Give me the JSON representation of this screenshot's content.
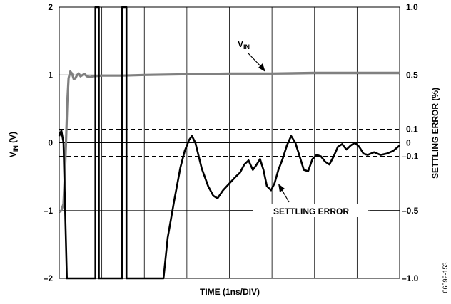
{
  "chart_data": {
    "type": "line",
    "xlabel": "TIME (1ns/DIV)",
    "ylabel_left": {
      "main": "V",
      "sub": "IN",
      "unit": " (V)"
    },
    "ylabel_right": "SETTLING ERROR (%)",
    "x_divisions": 8,
    "ylim_left": [
      -2,
      2
    ],
    "ylim_right": [
      -1.0,
      1.0
    ],
    "left_ticks": [
      "2",
      "1",
      "0",
      "–1",
      "–2"
    ],
    "left_tick_values": [
      2,
      1,
      0,
      -1,
      -2
    ],
    "right_ticks": [
      "1.0",
      "0.5",
      "0.1",
      "0",
      "–0.1",
      "–0.5",
      "–1.0"
    ],
    "right_tick_values": [
      1.0,
      0.5,
      0.1,
      0,
      -0.1,
      -0.5,
      -1.0
    ],
    "threshold_lines_pct": [
      0.1,
      -0.1
    ],
    "grid": true,
    "series": [
      {
        "name": "VIN",
        "axis": "left",
        "color": "#808080",
        "points": [
          [
            0,
            -1.02
          ],
          [
            0.05,
            -1.0
          ],
          [
            0.1,
            -0.9
          ],
          [
            0.13,
            -0.5
          ],
          [
            0.16,
            0.0
          ],
          [
            0.19,
            0.6
          ],
          [
            0.22,
            0.95
          ],
          [
            0.26,
            1.05
          ],
          [
            0.3,
            1.02
          ],
          [
            0.34,
            0.94
          ],
          [
            0.38,
            0.95
          ],
          [
            0.42,
            1.0
          ],
          [
            0.46,
            1.02
          ],
          [
            0.5,
            0.98
          ],
          [
            0.55,
            1.0
          ],
          [
            0.6,
            1.01
          ],
          [
            0.65,
            0.98
          ],
          [
            0.72,
            0.97
          ],
          [
            0.8,
            0.98
          ],
          [
            1.0,
            0.99
          ],
          [
            1.5,
            0.99
          ],
          [
            2.0,
            1.0
          ],
          [
            3.0,
            1.01
          ],
          [
            4.0,
            1.02
          ],
          [
            5.0,
            1.02
          ],
          [
            6.0,
            1.03
          ],
          [
            7.0,
            1.03
          ],
          [
            8.0,
            1.03
          ]
        ]
      },
      {
        "name": "SETTLING ERROR",
        "axis": "right",
        "color": "#000000",
        "points": [
          [
            0,
            0.05
          ],
          [
            0.05,
            0.09
          ],
          [
            0.1,
            0.0
          ],
          [
            0.14,
            -0.5
          ],
          [
            0.18,
            -1.0
          ],
          [
            0.85,
            -1.0
          ],
          [
            0.85,
            1.0
          ],
          [
            0.93,
            1.0
          ],
          [
            0.93,
            -1.0
          ],
          [
            1.48,
            -1.0
          ],
          [
            1.48,
            1.0
          ],
          [
            1.58,
            1.0
          ],
          [
            1.58,
            -1.0
          ],
          [
            2.45,
            -1.0
          ],
          [
            2.55,
            -0.7
          ],
          [
            2.7,
            -0.43
          ],
          [
            2.85,
            -0.18
          ],
          [
            2.95,
            -0.06
          ],
          [
            3.05,
            0.02
          ],
          [
            3.12,
            0.05
          ],
          [
            3.2,
            0.0
          ],
          [
            3.35,
            -0.19
          ],
          [
            3.5,
            -0.32
          ],
          [
            3.62,
            -0.39
          ],
          [
            3.72,
            -0.41
          ],
          [
            3.85,
            -0.35
          ],
          [
            4.0,
            -0.3
          ],
          [
            4.15,
            -0.25
          ],
          [
            4.25,
            -0.22
          ],
          [
            4.35,
            -0.16
          ],
          [
            4.45,
            -0.13
          ],
          [
            4.55,
            -0.2
          ],
          [
            4.62,
            -0.17
          ],
          [
            4.72,
            -0.12
          ],
          [
            4.8,
            -0.2
          ],
          [
            4.88,
            -0.32
          ],
          [
            4.98,
            -0.35
          ],
          [
            5.06,
            -0.3
          ],
          [
            5.15,
            -0.2
          ],
          [
            5.25,
            -0.12
          ],
          [
            5.35,
            -0.02
          ],
          [
            5.45,
            0.05
          ],
          [
            5.55,
            0.0
          ],
          [
            5.65,
            -0.1
          ],
          [
            5.75,
            -0.2
          ],
          [
            5.85,
            -0.21
          ],
          [
            5.95,
            -0.12
          ],
          [
            6.05,
            -0.09
          ],
          [
            6.15,
            -0.1
          ],
          [
            6.25,
            -0.14
          ],
          [
            6.35,
            -0.16
          ],
          [
            6.45,
            -0.1
          ],
          [
            6.55,
            -0.03
          ],
          [
            6.65,
            -0.01
          ],
          [
            6.75,
            -0.05
          ],
          [
            6.85,
            -0.02
          ],
          [
            6.95,
            0.0
          ],
          [
            7.05,
            -0.03
          ],
          [
            7.15,
            -0.08
          ],
          [
            7.25,
            -0.09
          ],
          [
            7.4,
            -0.07
          ],
          [
            7.55,
            -0.09
          ],
          [
            7.7,
            -0.08
          ],
          [
            7.85,
            -0.06
          ],
          [
            8.0,
            -0.02
          ]
        ]
      }
    ],
    "annotations": {
      "vin_label": {
        "main": "V",
        "sub": "IN"
      },
      "settling_label": "SETTLING ERROR"
    }
  },
  "figure_id": "06592-153"
}
